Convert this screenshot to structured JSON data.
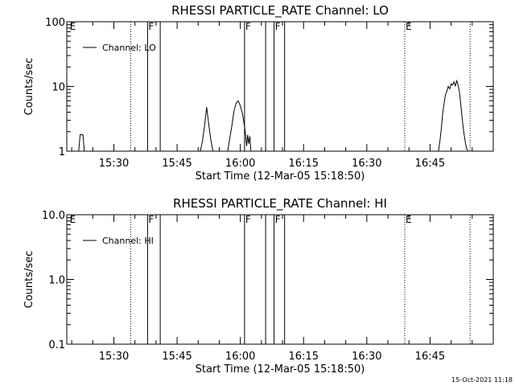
{
  "footer": {
    "timestamp": "15-Oct-2021 11:18"
  },
  "chart_data": [
    {
      "type": "line",
      "title": "RHESSI PARTICLE_RATE Channel: LO",
      "xlabel": "Start Time (12-Mar-05 15:18:50)",
      "ylabel": "Counts/sec",
      "yscale": "log",
      "ylim": [
        1,
        100
      ],
      "xlim": [
        "15:18:50",
        "17:00:00"
      ],
      "y_ticks": [
        "1",
        "10",
        "100"
      ],
      "x_ticks": [
        "15:30",
        "15:45",
        "16:00",
        "16:15",
        "16:30",
        "16:45"
      ],
      "legend": {
        "label": "Channel: LO",
        "position": "top-left"
      },
      "markers": [
        {
          "time": "15:19:20",
          "label": "E",
          "style": "none"
        },
        {
          "time": "15:34:00",
          "label": "",
          "style": "dotted"
        },
        {
          "time": "15:38:00",
          "label": "F",
          "style": "solid"
        },
        {
          "time": "15:41:00",
          "label": "",
          "style": "solid"
        },
        {
          "time": "16:01:00",
          "label": "F",
          "style": "solid"
        },
        {
          "time": "16:06:00",
          "label": "",
          "style": "solid"
        },
        {
          "time": "16:08:00",
          "label": "F",
          "style": "solid"
        },
        {
          "time": "16:10:30",
          "label": "",
          "style": "solid"
        },
        {
          "time": "16:39:00",
          "label": "E",
          "style": "dotted"
        },
        {
          "time": "16:54:30",
          "label": "",
          "style": "dotted"
        }
      ],
      "segments": [
        {
          "x": [
            "15:21:40",
            "15:22:00",
            "15:22:20",
            "15:22:40",
            "15:23:00"
          ],
          "y": [
            1.0,
            1.8,
            1.8,
            1.8,
            1.0
          ]
        },
        {
          "x": [
            "15:50:30",
            "15:51:00",
            "15:51:30",
            "15:52:00",
            "15:52:30",
            "15:53:00",
            "15:53:30"
          ],
          "y": [
            1.0,
            1.4,
            2.4,
            4.8,
            2.6,
            1.5,
            1.0
          ]
        },
        {
          "x": [
            "15:57:00",
            "15:57:30",
            "15:58:00",
            "15:58:30",
            "15:59:00",
            "15:59:30",
            "16:00:00",
            "16:00:30",
            "16:01:00",
            "16:01:15",
            "16:01:30",
            "16:01:45",
            "16:02:00",
            "16:02:15",
            "16:02:30"
          ],
          "y": [
            1.0,
            1.6,
            2.5,
            4.2,
            5.5,
            6.0,
            5.0,
            3.8,
            2.4,
            1.8,
            1.2,
            1.8,
            1.3,
            1.7,
            1.0
          ]
        },
        {
          "x": [
            "16:47:00",
            "16:47:20",
            "16:47:40",
            "16:48:00",
            "16:48:20",
            "16:48:40",
            "16:49:00",
            "16:49:20",
            "16:49:40",
            "16:50:00",
            "16:50:20",
            "16:50:40",
            "16:51:00",
            "16:51:20",
            "16:51:40",
            "16:52:00",
            "16:52:20",
            "16:52:40",
            "16:53:00",
            "16:53:20",
            "16:53:40",
            "16:54:00"
          ],
          "y": [
            1.0,
            1.4,
            2.2,
            3.8,
            5.5,
            7.5,
            8.5,
            10.0,
            9.2,
            11.0,
            10.5,
            11.8,
            10.2,
            12.2,
            10.5,
            8.0,
            5.0,
            3.0,
            2.0,
            1.4,
            1.1,
            1.0
          ]
        }
      ]
    },
    {
      "type": "line",
      "title": "RHESSI PARTICLE_RATE Channel: HI",
      "xlabel": "Start Time (12-Mar-05 15:18:50)",
      "ylabel": "Counts/sec",
      "yscale": "log",
      "ylim": [
        0.1,
        10
      ],
      "xlim": [
        "15:18:50",
        "17:00:00"
      ],
      "y_ticks": [
        "0.1",
        "1.0",
        "10.0"
      ],
      "x_ticks": [
        "15:30",
        "15:45",
        "16:00",
        "16:15",
        "16:30",
        "16:45"
      ],
      "legend": {
        "label": "Channel: HI",
        "position": "top-left"
      },
      "markers": [
        {
          "time": "15:19:20",
          "label": "E",
          "style": "none"
        },
        {
          "time": "15:34:00",
          "label": "",
          "style": "dotted"
        },
        {
          "time": "15:38:00",
          "label": "F",
          "style": "solid"
        },
        {
          "time": "15:41:00",
          "label": "",
          "style": "solid"
        },
        {
          "time": "16:01:00",
          "label": "F",
          "style": "solid"
        },
        {
          "time": "16:06:00",
          "label": "",
          "style": "solid"
        },
        {
          "time": "16:08:00",
          "label": "F",
          "style": "solid"
        },
        {
          "time": "16:10:30",
          "label": "",
          "style": "solid"
        },
        {
          "time": "16:39:00",
          "label": "E",
          "style": "dotted"
        },
        {
          "time": "16:54:30",
          "label": "",
          "style": "dotted"
        }
      ],
      "segments": []
    }
  ]
}
